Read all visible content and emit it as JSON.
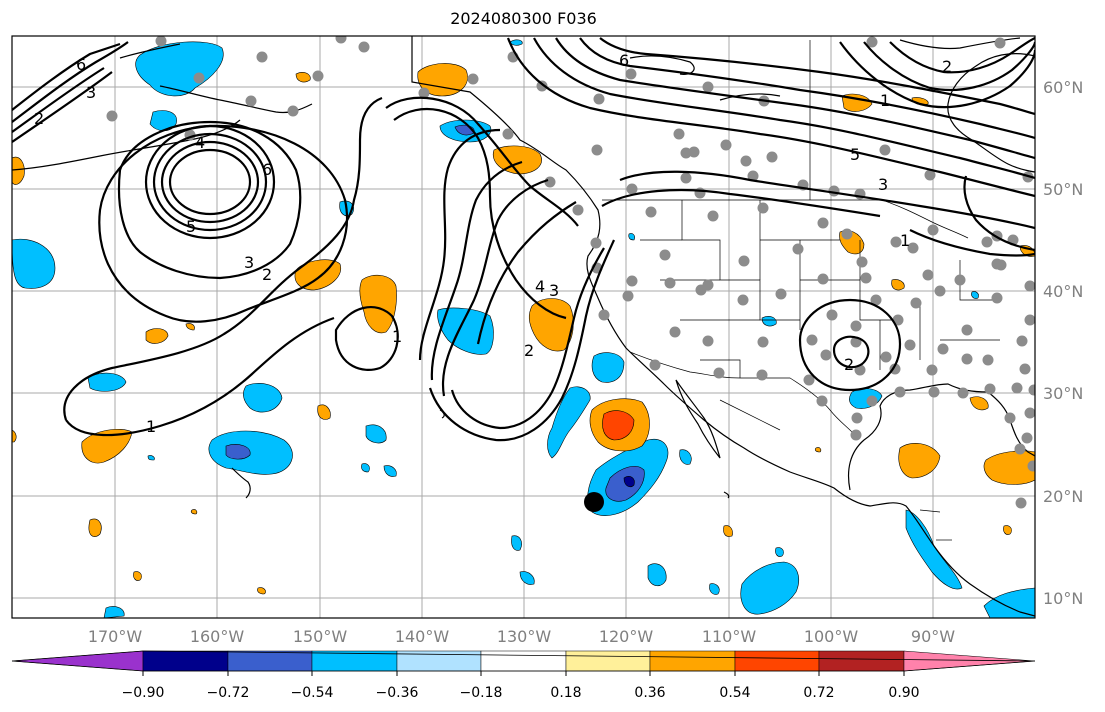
{
  "title": "2024080300 F036",
  "map": {
    "projection": "equirectangular",
    "lon_range": [
      -183,
      -83
    ],
    "lat_range": [
      8,
      65
    ],
    "lon_ticks": [
      "170°W",
      "160°W",
      "150°W",
      "140°W",
      "130°W",
      "120°W",
      "110°W",
      "100°W",
      "90°W"
    ],
    "lat_ticks": [
      "60°N",
      "50°N",
      "40°N",
      "30°N",
      "20°N",
      "10°N"
    ],
    "contour_labels": [
      "6",
      "3",
      "2",
      "4",
      "6",
      "5",
      "3",
      "2",
      "1",
      "1",
      "4",
      "3",
      "2",
      "6",
      "5",
      "3",
      "2",
      "2",
      "1",
      "1"
    ],
    "marker": {
      "label": "center-point",
      "lon": -123.6,
      "lat": 19.5
    }
  },
  "colorbar": {
    "tick_labels": [
      "−0.90",
      "−0.72",
      "−0.54",
      "−0.36",
      "−0.18",
      "0.18",
      "0.36",
      "0.54",
      "0.72",
      "0.90"
    ],
    "colors": [
      "#9a32cd",
      "#00008b",
      "#3a5fcd",
      "#00bfff",
      "#b0e2ff",
      "#ffffff",
      "#fff09a",
      "#ffa500",
      "#ff4500",
      "#b22222",
      "#ff82ab"
    ]
  }
}
